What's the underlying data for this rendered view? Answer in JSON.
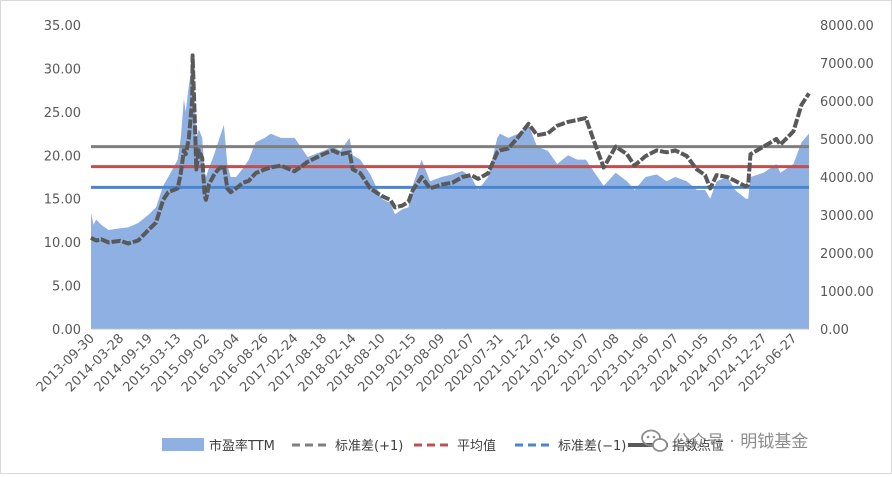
{
  "watermark": "公众号 · 明钺基金",
  "chart_data": {
    "type": "area+line",
    "x_tick_labels": [
      "2013-09-30",
      "2014-03-28",
      "2014-09-19",
      "2015-03-13",
      "2015-09-02",
      "2016-03-04",
      "2016-08-26",
      "2017-02-24",
      "2017-08-18",
      "2018-02-14",
      "2018-08-10",
      "2019-02-15",
      "2019-08-09",
      "2020-02-07",
      "2020-07-31",
      "2021-01-22",
      "2021-07-16",
      "2022-01-07",
      "2022-07-08",
      "2023-01-06",
      "2023-07-07",
      "2024-01-05",
      "2024-07-05",
      "2024-12-27",
      "2025-06-27"
    ],
    "y_left": {
      "min": 0,
      "max": 35,
      "step": 5,
      "tick_labels": [
        "0.00",
        "5.00",
        "10.00",
        "15.00",
        "20.00",
        "25.00",
        "30.00",
        "35.00"
      ]
    },
    "y_right": {
      "min": 0,
      "max": 8000,
      "step": 1000,
      "tick_labels": [
        "0.00",
        "1000.00",
        "2000.00",
        "3000.00",
        "4000.00",
        "5000.00",
        "6000.00",
        "7000.00",
        "8000.00"
      ]
    },
    "legend_position": "bottom",
    "series": [
      {
        "name": "市盈率TTM",
        "kind": "area",
        "axis": "left",
        "color": "#8fb0e2",
        "points": [
          [
            "2013-09-30",
            13.4
          ],
          [
            "2013-10-15",
            12.0
          ],
          [
            "2013-11-01",
            12.6
          ],
          [
            "2013-12-01",
            12.0
          ],
          [
            "2014-01-15",
            11.4
          ],
          [
            "2014-03-28",
            11.6
          ],
          [
            "2014-05-15",
            11.7
          ],
          [
            "2014-07-15",
            12.2
          ],
          [
            "2014-09-19",
            13.2
          ],
          [
            "2014-11-01",
            14.0
          ],
          [
            "2014-12-15",
            16.5
          ],
          [
            "2015-01-15",
            17.5
          ],
          [
            "2015-03-13",
            19.5
          ],
          [
            "2015-04-01",
            22.0
          ],
          [
            "2015-04-20",
            26.5
          ],
          [
            "2015-05-01",
            25.0
          ],
          [
            "2015-05-20",
            28.0
          ],
          [
            "2015-06-10",
            30.5
          ],
          [
            "2015-06-25",
            27.0
          ],
          [
            "2015-07-05",
            22.0
          ],
          [
            "2015-07-20",
            23.0
          ],
          [
            "2015-08-10",
            22.0
          ],
          [
            "2015-08-25",
            18.0
          ],
          [
            "2015-09-02",
            17.5
          ],
          [
            "2015-09-20",
            18.5
          ],
          [
            "2015-10-20",
            20.0
          ],
          [
            "2015-11-15",
            21.5
          ],
          [
            "2015-12-20",
            23.5
          ],
          [
            "2016-01-10",
            19.0
          ],
          [
            "2016-01-30",
            17.5
          ],
          [
            "2016-03-04",
            17.5
          ],
          [
            "2016-04-15",
            18.5
          ],
          [
            "2016-05-20",
            19.5
          ],
          [
            "2016-07-01",
            21.5
          ],
          [
            "2016-08-26",
            22.0
          ],
          [
            "2016-10-01",
            22.5
          ],
          [
            "2016-12-01",
            22.0
          ],
          [
            "2017-02-24",
            22.0
          ],
          [
            "2017-05-15",
            19.8
          ],
          [
            "2017-08-18",
            20.5
          ],
          [
            "2017-10-15",
            21.0
          ],
          [
            "2017-12-01",
            20.5
          ],
          [
            "2018-01-25",
            22.0
          ],
          [
            "2018-02-14",
            20.0
          ],
          [
            "2018-04-01",
            19.5
          ],
          [
            "2018-06-01",
            17.8
          ],
          [
            "2018-08-10",
            15.0
          ],
          [
            "2018-10-01",
            14.5
          ],
          [
            "2018-10-30",
            13.2
          ],
          [
            "2018-12-15",
            13.8
          ],
          [
            "2019-01-20",
            14.0
          ],
          [
            "2019-02-15",
            16.5
          ],
          [
            "2019-04-10",
            19.5
          ],
          [
            "2019-06-01",
            17.0
          ],
          [
            "2019-08-09",
            17.5
          ],
          [
            "2019-10-15",
            17.8
          ],
          [
            "2019-12-15",
            18.2
          ],
          [
            "2020-02-07",
            17.5
          ],
          [
            "2020-03-20",
            16.0
          ],
          [
            "2020-05-20",
            17.5
          ],
          [
            "2020-07-15",
            22.0
          ],
          [
            "2020-07-31",
            22.5
          ],
          [
            "2020-09-20",
            22.0
          ],
          [
            "2020-11-20",
            22.5
          ],
          [
            "2021-01-22",
            23.5
          ],
          [
            "2021-03-15",
            21.0
          ],
          [
            "2021-05-20",
            20.5
          ],
          [
            "2021-07-16",
            19.0
          ],
          [
            "2021-09-20",
            20.0
          ],
          [
            "2021-11-15",
            19.5
          ],
          [
            "2022-01-07",
            19.5
          ],
          [
            "2022-03-01",
            18.0
          ],
          [
            "2022-04-26",
            16.5
          ],
          [
            "2022-07-08",
            18.0
          ],
          [
            "2022-09-15",
            17.0
          ],
          [
            "2022-10-31",
            16.0
          ],
          [
            "2023-01-06",
            17.5
          ],
          [
            "2023-03-15",
            17.8
          ],
          [
            "2023-05-15",
            17.0
          ],
          [
            "2023-07-07",
            17.5
          ],
          [
            "2023-09-15",
            17.0
          ],
          [
            "2023-11-15",
            16.0
          ],
          [
            "2024-01-05",
            16.0
          ],
          [
            "2024-02-05",
            15.0
          ],
          [
            "2024-03-15",
            17.0
          ],
          [
            "2024-05-20",
            17.5
          ],
          [
            "2024-07-05",
            16.0
          ],
          [
            "2024-09-10",
            15.0
          ],
          [
            "2024-09-24",
            15.0
          ],
          [
            "2024-10-08",
            17.5
          ],
          [
            "2024-12-27",
            18.0
          ],
          [
            "2025-03-15",
            19.0
          ],
          [
            "2025-04-08",
            18.0
          ],
          [
            "2025-06-27",
            19.0
          ],
          [
            "2025-08-15",
            21.5
          ],
          [
            "2025-09-30",
            22.5
          ]
        ]
      },
      {
        "name": "标准差(+1)",
        "kind": "hline",
        "axis": "left",
        "color": "#7f7f7f",
        "value": 21.0
      },
      {
        "name": "平均值",
        "kind": "hline",
        "axis": "left",
        "color": "#c0504d",
        "value": 18.7
      },
      {
        "name": "标准差(−1)",
        "kind": "hline",
        "axis": "left",
        "color": "#4a86d0",
        "value": 16.3
      },
      {
        "name": "指数点位",
        "kind": "line",
        "axis": "right",
        "color": "#595959",
        "points": [
          [
            "2013-09-30",
            2400
          ],
          [
            "2013-11-01",
            2330
          ],
          [
            "2013-12-01",
            2360
          ],
          [
            "2014-01-15",
            2280
          ],
          [
            "2014-03-28",
            2320
          ],
          [
            "2014-05-15",
            2250
          ],
          [
            "2014-07-15",
            2330
          ],
          [
            "2014-09-19",
            2620
          ],
          [
            "2014-11-01",
            2800
          ],
          [
            "2014-12-15",
            3400
          ],
          [
            "2015-01-15",
            3600
          ],
          [
            "2015-03-13",
            3700
          ],
          [
            "2015-04-01",
            4100
          ],
          [
            "2015-04-20",
            4700
          ],
          [
            "2015-05-01",
            4600
          ],
          [
            "2015-05-20",
            5000
          ],
          [
            "2015-06-10",
            6050
          ],
          [
            "2015-06-12",
            7200
          ],
          [
            "2015-06-25",
            5600
          ],
          [
            "2015-07-05",
            4200
          ],
          [
            "2015-07-20",
            4700
          ],
          [
            "2015-08-10",
            4500
          ],
          [
            "2015-08-25",
            3500
          ],
          [
            "2015-09-02",
            3400
          ],
          [
            "2015-09-20",
            3800
          ],
          [
            "2015-10-20",
            4050
          ],
          [
            "2015-11-15",
            4200
          ],
          [
            "2015-12-20",
            4300
          ],
          [
            "2016-01-10",
            3700
          ],
          [
            "2016-01-30",
            3600
          ],
          [
            "2016-03-04",
            3700
          ],
          [
            "2016-04-15",
            3850
          ],
          [
            "2016-05-20",
            3900
          ],
          [
            "2016-07-01",
            4100
          ],
          [
            "2016-08-26",
            4200
          ],
          [
            "2016-10-01",
            4250
          ],
          [
            "2016-12-01",
            4300
          ],
          [
            "2017-02-24",
            4150
          ],
          [
            "2017-05-15",
            4400
          ],
          [
            "2017-08-18",
            4600
          ],
          [
            "2017-10-15",
            4700
          ],
          [
            "2017-12-01",
            4600
          ],
          [
            "2018-01-25",
            4650
          ],
          [
            "2018-02-14",
            4200
          ],
          [
            "2018-04-01",
            4100
          ],
          [
            "2018-06-01",
            3700
          ],
          [
            "2018-08-10",
            3500
          ],
          [
            "2018-10-01",
            3400
          ],
          [
            "2018-10-30",
            3200
          ],
          [
            "2018-12-15",
            3250
          ],
          [
            "2019-01-20",
            3350
          ],
          [
            "2019-02-15",
            3650
          ],
          [
            "2019-04-10",
            4000
          ],
          [
            "2019-06-01",
            3700
          ],
          [
            "2019-08-09",
            3800
          ],
          [
            "2019-10-15",
            3850
          ],
          [
            "2019-12-15",
            4000
          ],
          [
            "2020-02-07",
            4050
          ],
          [
            "2020-03-20",
            3950
          ],
          [
            "2020-05-20",
            4100
          ],
          [
            "2020-07-15",
            4650
          ],
          [
            "2020-07-31",
            4700
          ],
          [
            "2020-09-20",
            4750
          ],
          [
            "2020-11-20",
            5050
          ],
          [
            "2021-01-22",
            5400
          ],
          [
            "2021-03-15",
            5100
          ],
          [
            "2021-05-20",
            5150
          ],
          [
            "2021-07-16",
            5350
          ],
          [
            "2021-09-20",
            5450
          ],
          [
            "2021-11-15",
            5500
          ],
          [
            "2022-01-07",
            5550
          ],
          [
            "2022-03-01",
            4900
          ],
          [
            "2022-04-26",
            4250
          ],
          [
            "2022-07-08",
            4800
          ],
          [
            "2022-09-15",
            4600
          ],
          [
            "2022-10-31",
            4300
          ],
          [
            "2023-01-06",
            4550
          ],
          [
            "2023-03-15",
            4700
          ],
          [
            "2023-05-15",
            4650
          ],
          [
            "2023-07-07",
            4700
          ],
          [
            "2023-09-15",
            4550
          ],
          [
            "2023-11-15",
            4200
          ],
          [
            "2024-01-05",
            4050
          ],
          [
            "2024-02-05",
            3700
          ],
          [
            "2024-03-15",
            4050
          ],
          [
            "2024-05-20",
            4000
          ],
          [
            "2024-07-05",
            3900
          ],
          [
            "2024-09-10",
            3750
          ],
          [
            "2024-09-24",
            3800
          ],
          [
            "2024-10-08",
            4600
          ],
          [
            "2024-12-27",
            4800
          ],
          [
            "2025-03-15",
            5000
          ],
          [
            "2025-04-08",
            4850
          ],
          [
            "2025-06-27",
            5200
          ],
          [
            "2025-08-15",
            5900
          ],
          [
            "2025-09-30",
            6200
          ]
        ]
      }
    ]
  }
}
